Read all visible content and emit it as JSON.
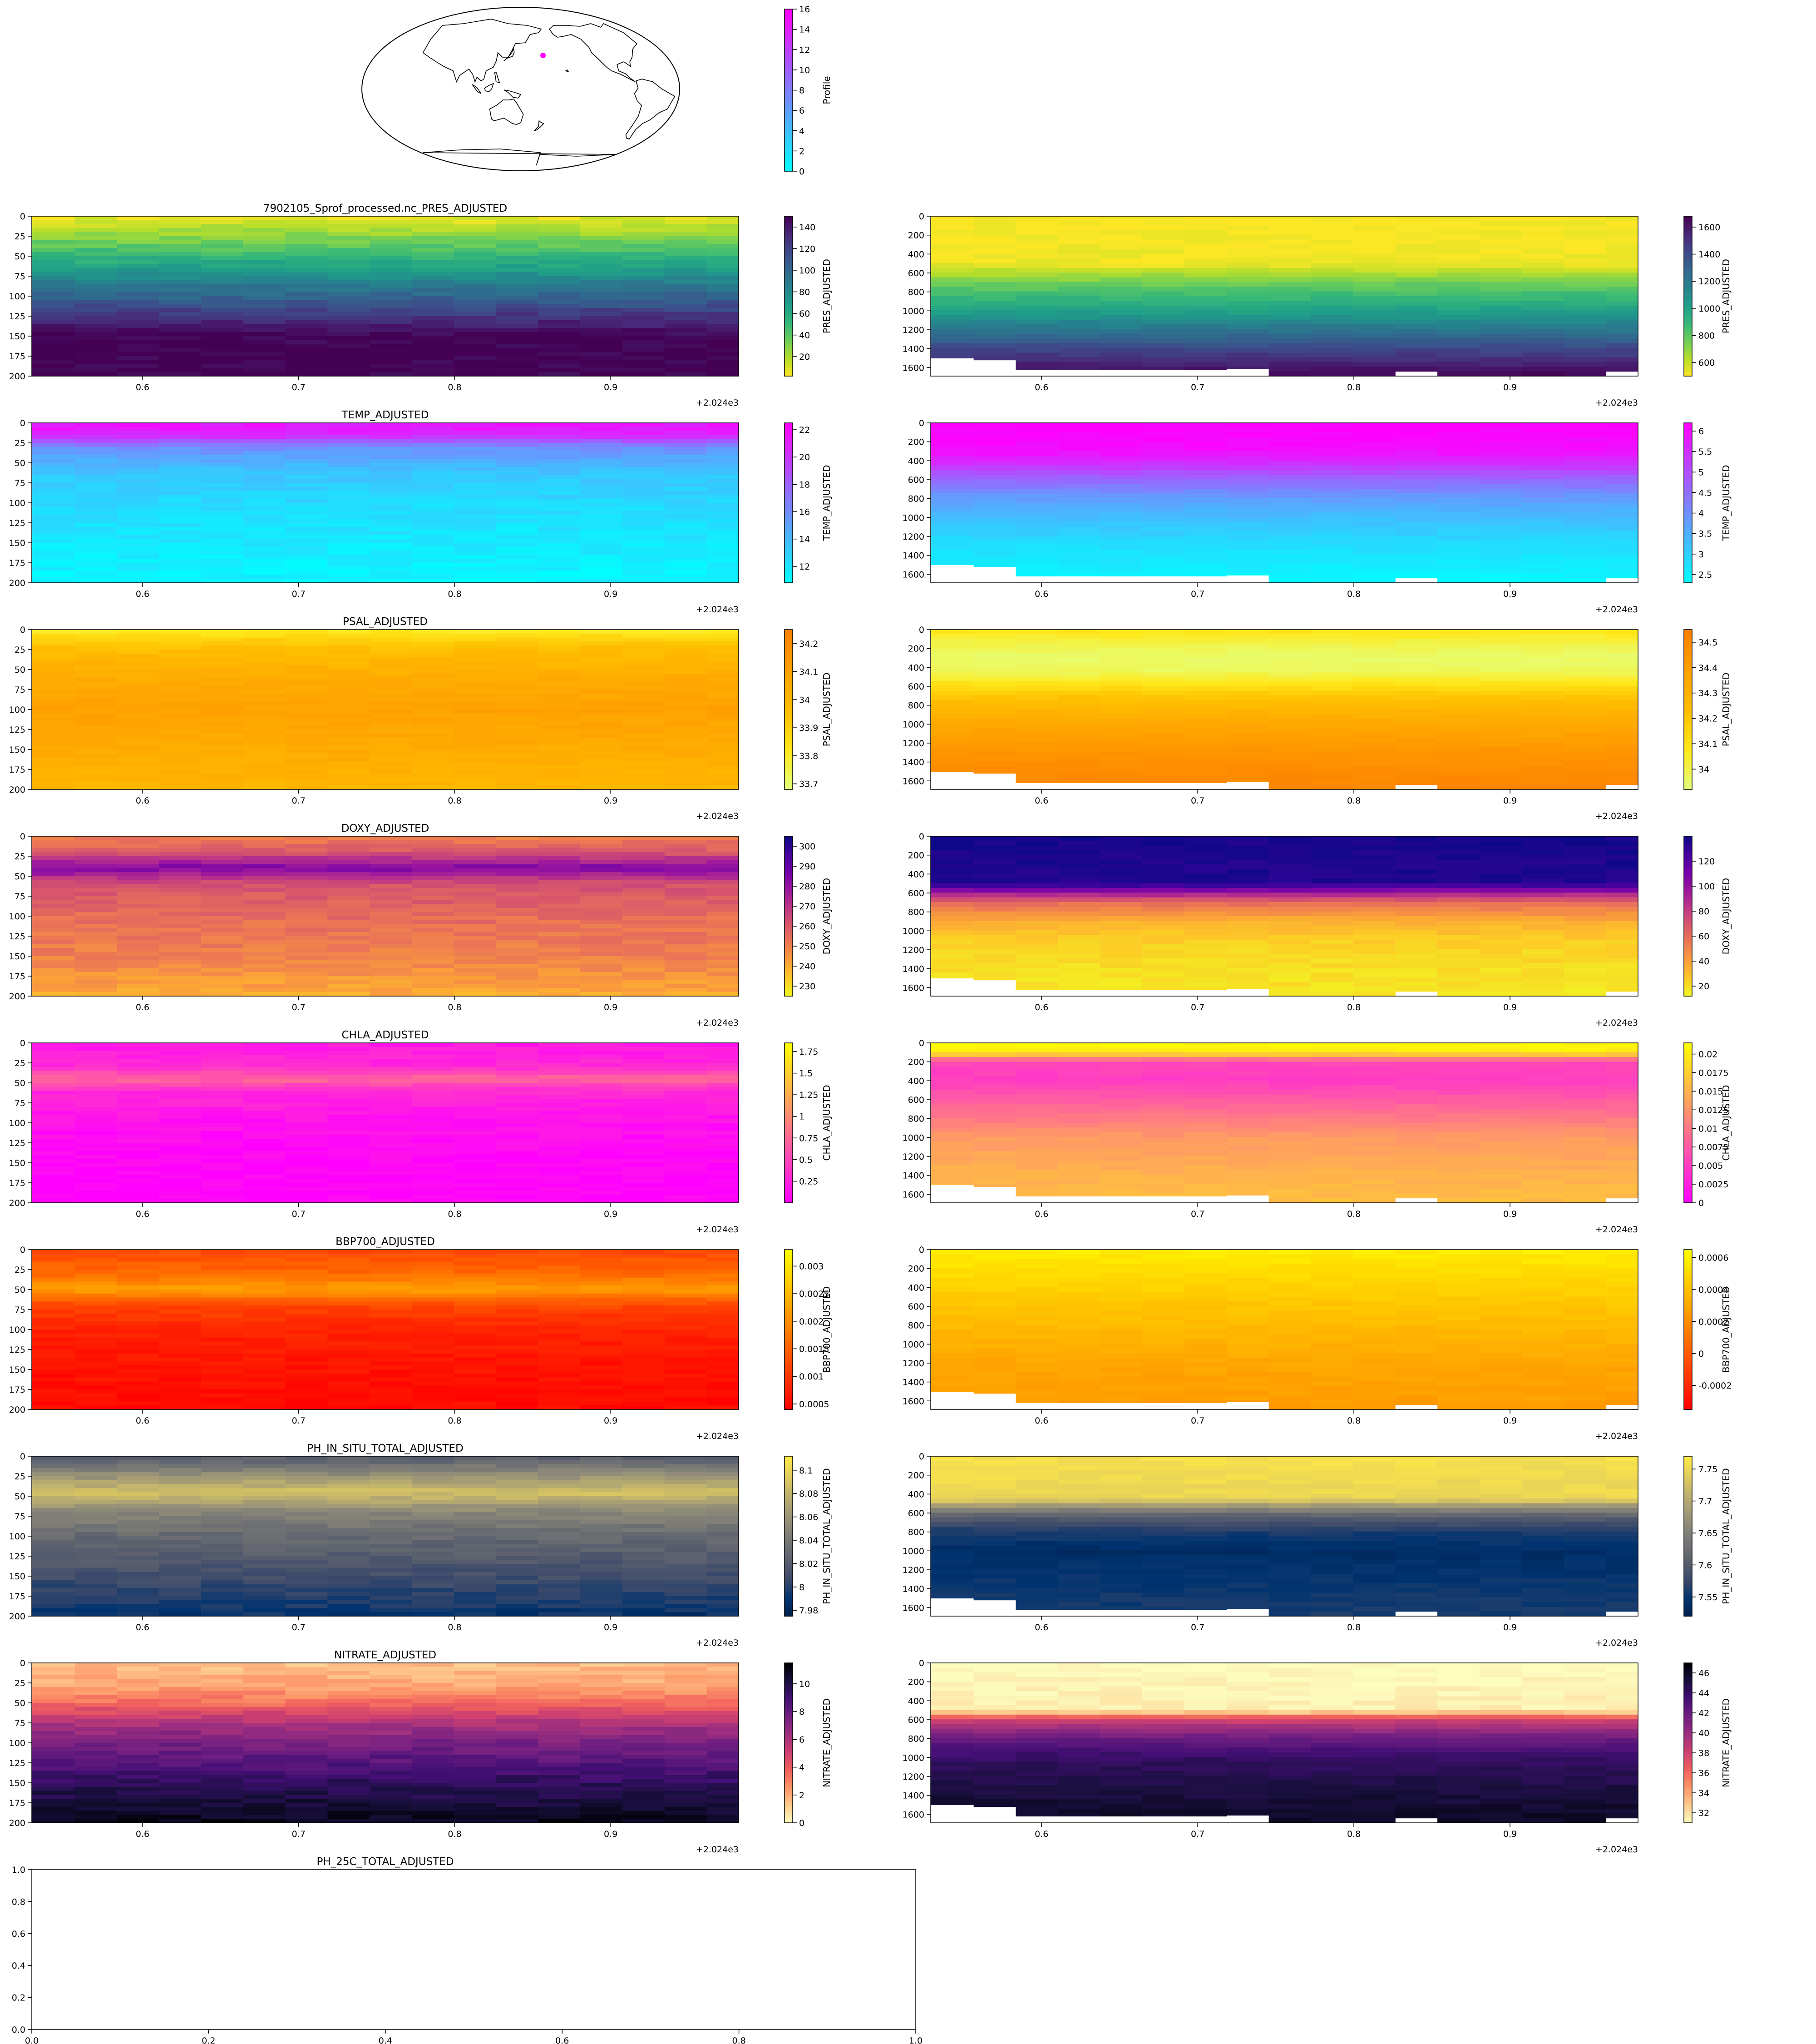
{
  "figure": {
    "offset_label": "+2.024e3"
  },
  "map": {
    "colorbar": {
      "label": "Profile",
      "ticks": [
        0,
        2,
        4,
        6,
        8,
        10,
        12,
        14,
        16
      ],
      "range": [
        0,
        16
      ],
      "cmap": "cool"
    },
    "markers": [
      {
        "lon": 177,
        "lat": 37,
        "color": "#ff00ff",
        "profile": 16
      }
    ]
  },
  "x_ticks": [
    0.6,
    0.7,
    0.8,
    0.9
  ],
  "x_tick_labels": [
    "0.6",
    "0.7",
    "0.8",
    "0.9"
  ],
  "x_range": [
    0.529,
    0.982
  ],
  "profile_times": [
    0.543,
    0.57,
    0.597,
    0.624,
    0.651,
    0.678,
    0.705,
    0.732,
    0.759,
    0.786,
    0.813,
    0.84,
    0.867,
    0.894,
    0.921,
    0.948,
    0.975
  ],
  "deep_y_ticks": [
    0,
    200,
    400,
    600,
    800,
    1000,
    1200,
    1400,
    1600
  ],
  "deep_y_labels": [
    "0",
    "200",
    "400",
    "600",
    "800",
    "1000",
    "1200",
    "1400",
    "1600"
  ],
  "deep_y_range": [
    0,
    1690
  ],
  "shallow_y_ticks": [
    0,
    25,
    50,
    75,
    100,
    125,
    150,
    175,
    200
  ],
  "shallow_y_labels": [
    "0",
    "25",
    "50",
    "75",
    "100",
    "125",
    "150",
    "175",
    "200"
  ],
  "shallow_y_range": [
    0,
    200
  ],
  "deep_bottom_pressures": [
    1500,
    1520,
    1620,
    1620,
    1620,
    1620,
    1620,
    1610,
    1690,
    1690,
    1690,
    1640,
    1690,
    1690,
    1690,
    1690,
    1640
  ],
  "chart_data": [
    {
      "type": "heatmap",
      "title": "7902105_Sprof_processed.nc_PRES_ADJUSTED",
      "variable": "PRES_ADJUSTED",
      "ylim": [
        0,
        200
      ],
      "y_inverted": true,
      "cmap": "viridis_r",
      "deep": {
        "colorbar_ticks": [
          600,
          800,
          1000,
          1200,
          1400,
          1600
        ],
        "colorbar_range": [
          500,
          1680
        ]
      },
      "shallow": {
        "colorbar_ticks": [
          20,
          40,
          60,
          80,
          100,
          120,
          140
        ],
        "colorbar_range": [
          2,
          150
        ]
      },
      "shallow_profile": [
        [
          0,
          5
        ],
        [
          25,
          28
        ],
        [
          50,
          52
        ],
        [
          75,
          77
        ],
        [
          100,
          102
        ],
        [
          125,
          127
        ],
        [
          150,
          150
        ],
        [
          200,
          150
        ]
      ],
      "deep_profile": [
        [
          0,
          500
        ],
        [
          500,
          520
        ],
        [
          700,
          760
        ],
        [
          1000,
          1010
        ],
        [
          1200,
          1220
        ],
        [
          1400,
          1420
        ],
        [
          1600,
          1600
        ],
        [
          1690,
          1680
        ]
      ]
    },
    {
      "type": "heatmap",
      "title": "TEMP_ADJUSTED",
      "variable": "TEMP_ADJUSTED",
      "ylim": [
        0,
        200
      ],
      "y_inverted": true,
      "cmap": "cool",
      "deep": {
        "colorbar_ticks": [
          2.5,
          3.0,
          3.5,
          4.0,
          4.5,
          5.0,
          5.5,
          6.0
        ],
        "colorbar_range": [
          2.3,
          6.2
        ]
      },
      "shallow": {
        "colorbar_ticks": [
          12,
          14,
          16,
          18,
          20,
          22
        ],
        "colorbar_range": [
          10.8,
          22.5
        ]
      },
      "shallow_profile": [
        [
          0,
          21.5
        ],
        [
          15,
          21
        ],
        [
          30,
          16
        ],
        [
          60,
          13.5
        ],
        [
          100,
          12.5
        ],
        [
          150,
          11.8
        ],
        [
          200,
          11.2
        ]
      ],
      "deep_profile": [
        [
          0,
          6.2
        ],
        [
          300,
          6.0
        ],
        [
          450,
          5.4
        ],
        [
          600,
          4.6
        ],
        [
          800,
          3.8
        ],
        [
          1000,
          3.3
        ],
        [
          1300,
          2.8
        ],
        [
          1690,
          2.4
        ]
      ]
    },
    {
      "type": "heatmap",
      "title": "PSAL_ADJUSTED",
      "variable": "PSAL_ADJUSTED",
      "ylim": [
        0,
        200
      ],
      "y_inverted": true,
      "cmap": "Wistia",
      "deep": {
        "colorbar_ticks": [
          34.0,
          34.1,
          34.2,
          34.3,
          34.4,
          34.5
        ],
        "colorbar_range": [
          33.92,
          34.55
        ]
      },
      "shallow": {
        "colorbar_ticks": [
          33.7,
          33.8,
          33.9,
          34.0,
          34.1,
          34.2
        ],
        "colorbar_range": [
          33.68,
          34.25
        ]
      },
      "shallow_profile": [
        [
          0,
          33.8
        ],
        [
          20,
          33.95
        ],
        [
          60,
          34.05
        ],
        [
          100,
          34.1
        ],
        [
          150,
          34.05
        ],
        [
          200,
          34.0
        ]
      ],
      "deep_profile": [
        [
          0,
          34.1
        ],
        [
          150,
          34.0
        ],
        [
          300,
          33.95
        ],
        [
          450,
          33.98
        ],
        [
          700,
          34.2
        ],
        [
          1000,
          34.35
        ],
        [
          1300,
          34.45
        ],
        [
          1690,
          34.52
        ]
      ]
    },
    {
      "type": "heatmap",
      "title": "DOXY_ADJUSTED",
      "variable": "DOXY_ADJUSTED",
      "ylim": [
        0,
        200
      ],
      "y_inverted": true,
      "cmap": "plasma_r",
      "deep": {
        "colorbar_ticks": [
          20,
          40,
          60,
          80,
          100,
          120
        ],
        "colorbar_range": [
          12,
          140
        ]
      },
      "shallow": {
        "colorbar_ticks": [
          230,
          240,
          250,
          260,
          270,
          280,
          290,
          300
        ],
        "colorbar_range": [
          225,
          305
        ]
      },
      "shallow_profile": [
        [
          0,
          250
        ],
        [
          20,
          260
        ],
        [
          40,
          285
        ],
        [
          60,
          262
        ],
        [
          100,
          255
        ],
        [
          150,
          250
        ],
        [
          200,
          240
        ]
      ],
      "deep_profile": [
        [
          0,
          138
        ],
        [
          500,
          135
        ],
        [
          600,
          95
        ],
        [
          700,
          60
        ],
        [
          900,
          35
        ],
        [
          1100,
          25
        ],
        [
          1400,
          20
        ],
        [
          1690,
          18
        ]
      ]
    },
    {
      "type": "heatmap",
      "title": "CHLA_ADJUSTED",
      "variable": "CHLA_ADJUSTED",
      "ylim": [
        0,
        200
      ],
      "y_inverted": true,
      "cmap": "spring",
      "deep": {
        "colorbar_ticks": [
          0.0,
          0.0025,
          0.005,
          0.0075,
          0.01,
          0.0125,
          0.015,
          0.0175,
          0.02
        ],
        "colorbar_range": [
          0.0,
          0.0215
        ]
      },
      "shallow": {
        "colorbar_ticks": [
          0.25,
          0.5,
          0.75,
          1.0,
          1.25,
          1.5,
          1.75
        ],
        "colorbar_range": [
          0.0,
          1.85
        ]
      },
      "shallow_profile": [
        [
          0,
          0.18
        ],
        [
          30,
          0.3
        ],
        [
          45,
          0.75
        ],
        [
          60,
          0.3
        ],
        [
          100,
          0.12
        ],
        [
          150,
          0.03
        ],
        [
          200,
          0.02
        ]
      ],
      "deep_profile": [
        [
          0,
          0.021
        ],
        [
          100,
          0.02
        ],
        [
          200,
          0.006
        ],
        [
          400,
          0.005
        ],
        [
          700,
          0.009
        ],
        [
          1000,
          0.013
        ],
        [
          1400,
          0.015
        ],
        [
          1690,
          0.016
        ]
      ]
    },
    {
      "type": "heatmap",
      "title": "BBP700_ADJUSTED",
      "variable": "BBP700_ADJUSTED",
      "ylim": [
        0,
        200
      ],
      "y_inverted": true,
      "cmap": "autumn",
      "deep": {
        "colorbar_ticks": [
          -0.0002,
          0.0,
          0.0002,
          0.0004,
          0.0006
        ],
        "colorbar_range": [
          -0.00035,
          0.00065
        ]
      },
      "shallow": {
        "colorbar_ticks": [
          0.0005,
          0.001,
          0.0015,
          0.002,
          0.0025,
          0.003
        ],
        "colorbar_range": [
          0.0004,
          0.0033
        ]
      },
      "shallow_profile": [
        [
          0,
          0.0012
        ],
        [
          30,
          0.0016
        ],
        [
          50,
          0.0022
        ],
        [
          70,
          0.0012
        ],
        [
          100,
          0.0008
        ],
        [
          150,
          0.0006
        ],
        [
          200,
          0.0005
        ]
      ],
      "deep_profile": [
        [
          0,
          0.00058
        ],
        [
          300,
          0.0005
        ],
        [
          600,
          0.00042
        ],
        [
          900,
          0.00036
        ],
        [
          1200,
          0.0003
        ],
        [
          1690,
          0.00026
        ]
      ]
    },
    {
      "type": "heatmap",
      "title": "PH_IN_SITU_TOTAL_ADJUSTED",
      "variable": "PH_IN_SITU_TOTAL_ADJUSTED",
      "ylim": [
        0,
        200
      ],
      "y_inverted": true,
      "cmap": "cividis",
      "deep": {
        "colorbar_ticks": [
          7.55,
          7.6,
          7.65,
          7.7,
          7.75
        ],
        "colorbar_range": [
          7.52,
          7.77
        ]
      },
      "shallow": {
        "colorbar_ticks": [
          7.98,
          8.0,
          8.02,
          8.04,
          8.06,
          8.08,
          8.1
        ],
        "colorbar_range": [
          7.975,
          8.112
        ]
      },
      "shallow_profile": [
        [
          0,
          8.02
        ],
        [
          20,
          8.05
        ],
        [
          45,
          8.09
        ],
        [
          70,
          8.05
        ],
        [
          100,
          8.03
        ],
        [
          150,
          8.01
        ],
        [
          200,
          7.99
        ]
      ],
      "deep_profile": [
        [
          0,
          7.76
        ],
        [
          450,
          7.75
        ],
        [
          550,
          7.66
        ],
        [
          650,
          7.6
        ],
        [
          800,
          7.56
        ],
        [
          1000,
          7.54
        ],
        [
          1300,
          7.55
        ],
        [
          1690,
          7.56
        ]
      ]
    },
    {
      "type": "heatmap",
      "title": "NITRATE_ADJUSTED",
      "variable": "NITRATE_ADJUSTED",
      "ylim": [
        0,
        200
      ],
      "y_inverted": true,
      "cmap": "magma_r",
      "deep": {
        "colorbar_ticks": [
          32,
          34,
          36,
          38,
          40,
          42,
          44,
          46
        ],
        "colorbar_range": [
          31,
          47
        ]
      },
      "shallow": {
        "colorbar_ticks": [
          0,
          2,
          4,
          6,
          8,
          10
        ],
        "colorbar_range": [
          0,
          11.5
        ]
      },
      "shallow_profile": [
        [
          0,
          1.5
        ],
        [
          30,
          2.2
        ],
        [
          50,
          3.5
        ],
        [
          75,
          6.0
        ],
        [
          100,
          7.5
        ],
        [
          150,
          9.5
        ],
        [
          200,
          11
        ]
      ],
      "deep_profile": [
        [
          0,
          31
        ],
        [
          500,
          31.5
        ],
        [
          600,
          38
        ],
        [
          800,
          42
        ],
        [
          1000,
          44
        ],
        [
          1300,
          45
        ],
        [
          1690,
          46
        ]
      ]
    },
    {
      "type": "heatmap",
      "title": "PH_25C_TOTAL_ADJUSTED",
      "variable": "PH_25C_TOTAL_ADJUSTED",
      "empty": true,
      "x_ticks": [
        "0.0",
        "0.2",
        "0.4",
        "0.6",
        "0.8",
        "1.0"
      ],
      "y_ticks": [
        "0.0",
        "0.2",
        "0.4",
        "0.6",
        "0.8",
        "1.0"
      ]
    }
  ]
}
